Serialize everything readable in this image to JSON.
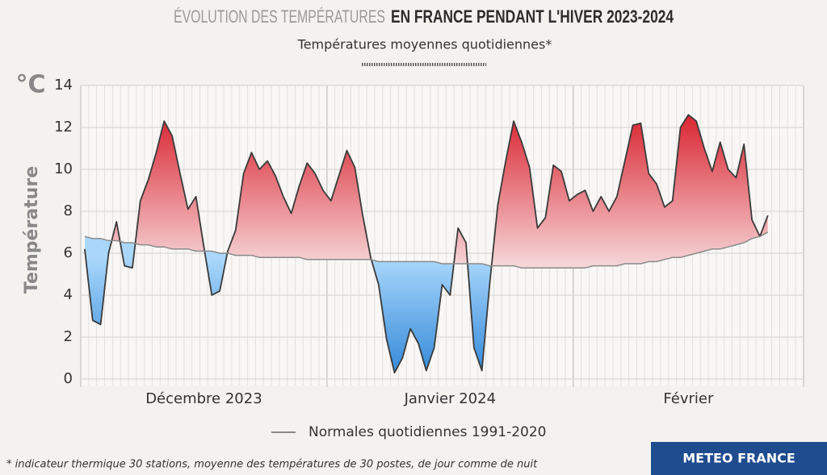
{
  "chart_data": {
    "type": "line",
    "title_light": "ÉVOLUTION DES TEMPÉRATURES",
    "title_bold": "EN FRANCE PENDANT L'HIVER 2023-2024",
    "subtitle": "Températures moyennes quotidiennes*",
    "unit": "°C",
    "y_label": "Température",
    "footnote": "* indicateur thermique 30 stations, moyenne des températures de 30 postes, de jour comme de nuit",
    "source": "METEO FRANCE",
    "xlim": [
      0,
      91
    ],
    "xticks": [
      {
        "value": 15.5,
        "label": "Décembre 2023"
      },
      {
        "value": 46.5,
        "label": "Janvier 2024"
      },
      {
        "value": 76.5,
        "label": "Février"
      }
    ],
    "month_bounds": [
      0,
      31,
      62,
      91
    ],
    "ylim": [
      0,
      14
    ],
    "yticks": [
      0,
      2,
      4,
      6,
      8,
      10,
      12,
      14
    ],
    "grid": true,
    "warm_color": "#d9232f",
    "cold_color": "#2f86d8",
    "series": [
      {
        "color": "#3a3a3a",
        "values": [
          6.2,
          2.8,
          2.6,
          6.0,
          7.5,
          5.4,
          5.3,
          8.5,
          9.5,
          10.8,
          12.3,
          11.6,
          9.8,
          8.1,
          8.7,
          6.3,
          4.0,
          4.2,
          6.1,
          7.1,
          9.8,
          10.8,
          10.0,
          10.4,
          9.7,
          8.7,
          7.9,
          9.2,
          10.3,
          9.8,
          9.0,
          8.5,
          9.7,
          10.9,
          10.1,
          7.8,
          5.8,
          4.5,
          1.9,
          0.3,
          1.0,
          2.4,
          1.7,
          0.4,
          1.5,
          4.5,
          4.0,
          7.2,
          6.5,
          1.5,
          0.4,
          4.6,
          8.3,
          10.4,
          12.3,
          11.3,
          10.1,
          7.2,
          7.7,
          10.2,
          9.9,
          8.5,
          8.8,
          9.0,
          8.0,
          8.7,
          8.0,
          8.7,
          10.4,
          12.1,
          12.2,
          9.8,
          9.3,
          8.2,
          8.5,
          12.0,
          12.6,
          12.3,
          11.0,
          9.9,
          11.3,
          10.0,
          9.6,
          11.2,
          7.6,
          6.8,
          7.8
        ]
      },
      {
        "name": "Normales quotidiennes 1991-2020",
        "color": "#8a8a8a",
        "values": [
          6.8,
          6.7,
          6.7,
          6.6,
          6.6,
          6.5,
          6.5,
          6.4,
          6.4,
          6.3,
          6.3,
          6.2,
          6.2,
          6.2,
          6.1,
          6.1,
          6.1,
          6.0,
          6.0,
          5.9,
          5.9,
          5.9,
          5.8,
          5.8,
          5.8,
          5.8,
          5.8,
          5.8,
          5.7,
          5.7,
          5.7,
          5.7,
          5.7,
          5.7,
          5.7,
          5.7,
          5.7,
          5.6,
          5.6,
          5.6,
          5.6,
          5.6,
          5.6,
          5.6,
          5.6,
          5.5,
          5.5,
          5.5,
          5.5,
          5.5,
          5.5,
          5.4,
          5.4,
          5.4,
          5.4,
          5.3,
          5.3,
          5.3,
          5.3,
          5.3,
          5.3,
          5.3,
          5.3,
          5.3,
          5.4,
          5.4,
          5.4,
          5.4,
          5.5,
          5.5,
          5.5,
          5.6,
          5.6,
          5.7,
          5.8,
          5.8,
          5.9,
          6.0,
          6.1,
          6.2,
          6.2,
          6.3,
          6.4,
          6.5,
          6.7,
          6.8,
          7.0
        ]
      }
    ]
  }
}
